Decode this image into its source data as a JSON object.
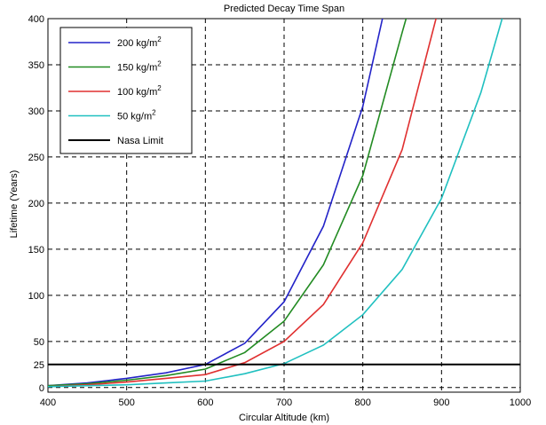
{
  "chart_data": {
    "type": "line",
    "title": "Predicted Decay Time Span",
    "xlabel": "Circular Altitude (km)",
    "ylabel": "Lifetime (Years)",
    "xlim": [
      400,
      1000
    ],
    "ylim": [
      -5,
      400
    ],
    "x_ticks": [
      400,
      500,
      600,
      700,
      800,
      900,
      1000
    ],
    "y_ticks": [
      0,
      25,
      50,
      100,
      150,
      200,
      250,
      300,
      350,
      400
    ],
    "grid": true,
    "grid_style": "dashed",
    "legend_position": "top-left",
    "series": [
      {
        "name": "200 kg/m",
        "superscript": "2",
        "color": "#2323c8",
        "points": [
          [
            400,
            2
          ],
          [
            450,
            5
          ],
          [
            500,
            10
          ],
          [
            550,
            16
          ],
          [
            600,
            25
          ],
          [
            650,
            48
          ],
          [
            700,
            93
          ],
          [
            750,
            175
          ],
          [
            800,
            305
          ],
          [
            825,
            400
          ]
        ]
      },
      {
        "name": "150 kg/m",
        "superscript": "2",
        "color": "#228b22",
        "points": [
          [
            400,
            2
          ],
          [
            450,
            4
          ],
          [
            500,
            8
          ],
          [
            550,
            13
          ],
          [
            600,
            20
          ],
          [
            650,
            38
          ],
          [
            700,
            72
          ],
          [
            750,
            133
          ],
          [
            800,
            230
          ],
          [
            850,
            385
          ],
          [
            855,
            400
          ]
        ]
      },
      {
        "name": "100 kg/m",
        "superscript": "2",
        "color": "#e03030",
        "points": [
          [
            400,
            1
          ],
          [
            450,
            3
          ],
          [
            500,
            6
          ],
          [
            550,
            10
          ],
          [
            600,
            14
          ],
          [
            650,
            27
          ],
          [
            700,
            50
          ],
          [
            750,
            90
          ],
          [
            800,
            157
          ],
          [
            850,
            258
          ],
          [
            893,
            400
          ]
        ]
      },
      {
        "name": " 50 kg/m",
        "superscript": "2",
        "color": "#20c0c0",
        "points": [
          [
            400,
            1
          ],
          [
            450,
            2
          ],
          [
            500,
            3
          ],
          [
            550,
            5
          ],
          [
            600,
            7
          ],
          [
            650,
            15
          ],
          [
            700,
            26
          ],
          [
            750,
            46
          ],
          [
            800,
            79
          ],
          [
            850,
            128
          ],
          [
            900,
            205
          ],
          [
            950,
            320
          ],
          [
            977,
            400
          ]
        ]
      },
      {
        "name": "Nasa Limit",
        "color": "#000000",
        "points": [
          [
            400,
            25
          ],
          [
            1000,
            25
          ]
        ]
      }
    ]
  }
}
